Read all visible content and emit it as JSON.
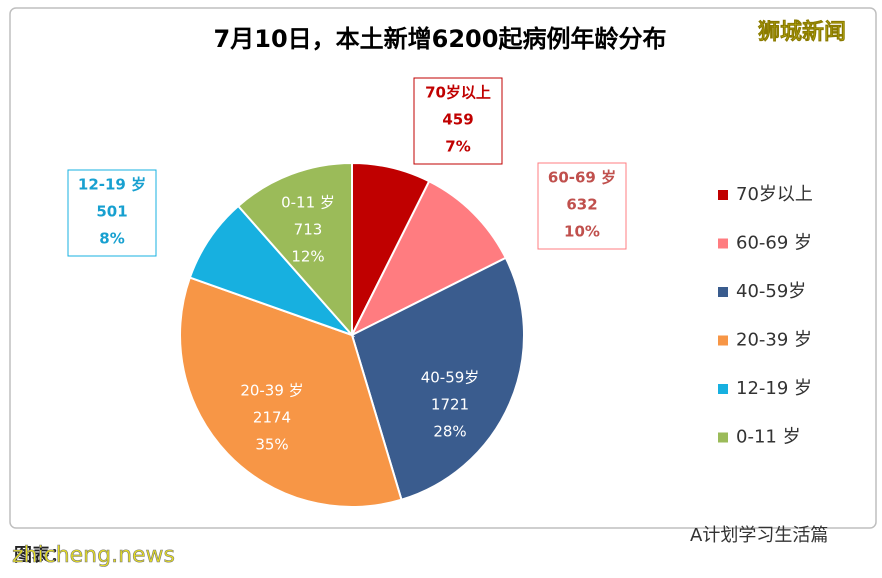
{
  "chart_data": {
    "type": "pie",
    "title": "7月10日，本土新增6200起病例年龄分布",
    "categories": [
      "70岁以上",
      "60-69 岁",
      "40-59岁",
      "20-39 岁",
      "12-19 岁",
      "0-11 岁"
    ],
    "values": [
      459,
      632,
      1721,
      2174,
      501,
      713
    ],
    "percentages": [
      7,
      10,
      28,
      35,
      8,
      12
    ],
    "percentage_labels": [
      "7%",
      "10%",
      "28%",
      "35%",
      "8%",
      "12%"
    ],
    "colors": [
      "#c00000",
      "#ff7c80",
      "#3a5c8e",
      "#f79646",
      "#17b0e0",
      "#9bbb59"
    ],
    "legend": "right"
  },
  "watermark": "狮城新闻",
  "source": "图表：",
  "site": "zhicheng.news",
  "account": "A计划学习生活篇"
}
